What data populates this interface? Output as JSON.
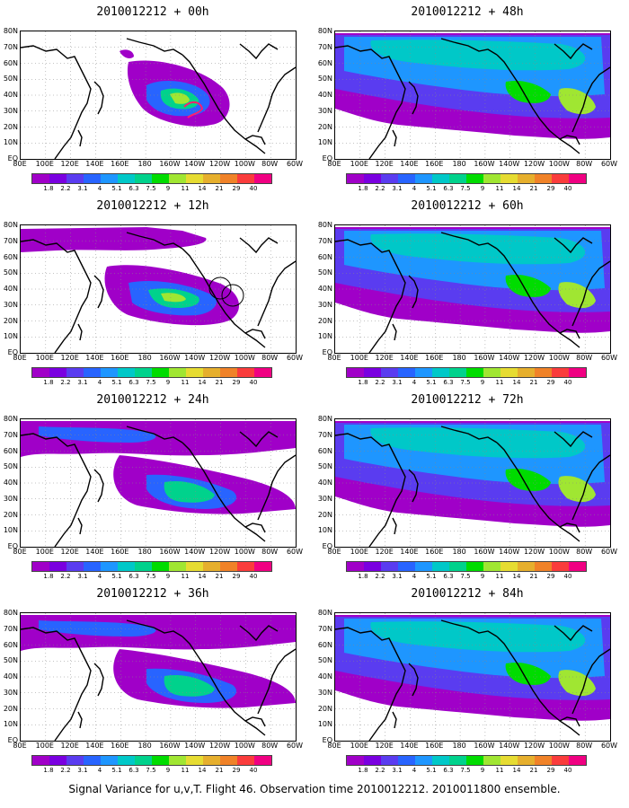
{
  "panels": [
    {
      "title": "2010012212 + 00h",
      "level": 0.9,
      "region": "pacific_east",
      "circles": false,
      "redcontour": true
    },
    {
      "title": "2010012212 + 48h",
      "level": 2.6,
      "region": "wide",
      "circles": false,
      "redcontour": false
    },
    {
      "title": "2010012212 + 12h",
      "level": 1.4,
      "region": "pacific",
      "circles": true,
      "redcontour": false
    },
    {
      "title": "2010012212 + 60h",
      "level": 2.9,
      "region": "wide",
      "circles": false,
      "redcontour": false
    },
    {
      "title": "2010012212 + 24h",
      "level": 1.8,
      "region": "pacific_wide",
      "circles": false,
      "redcontour": false
    },
    {
      "title": "2010012212 + 72h",
      "level": 3.2,
      "region": "wide",
      "circles": false,
      "redcontour": false
    },
    {
      "title": "2010012212 + 36h",
      "level": 2.2,
      "region": "pacific_wide",
      "circles": false,
      "redcontour": false
    },
    {
      "title": "2010012212 + 84h",
      "level": 3.5,
      "region": "wide",
      "circles": false,
      "redcontour": false
    }
  ],
  "lat_labels": [
    "80N",
    "70N",
    "60N",
    "50N",
    "40N",
    "30N",
    "20N",
    "10N",
    "EQ"
  ],
  "lon_labels": [
    "80E",
    "100E",
    "120E",
    "140E",
    "160E",
    "180",
    "160W",
    "140W",
    "120W",
    "100W",
    "80W",
    "60W"
  ],
  "colorbar": {
    "labels": [
      "1.8",
      "2.2",
      "3.1",
      "4",
      "5.1",
      "6.3",
      "7.5",
      "9",
      "11",
      "14",
      "21",
      "29",
      "40"
    ],
    "colors": [
      "#a000c8",
      "#7a00e0",
      "#5a3cf0",
      "#2864ff",
      "#1e96ff",
      "#00c8c8",
      "#00d28c",
      "#00dc00",
      "#a0e632",
      "#e6dc32",
      "#e6af2d",
      "#f08228",
      "#fa3c3c",
      "#f00082"
    ]
  },
  "caption": "Signal Variance for u,v,T. Flight 46. Observation time 2010012212. 2010011800 ensemble."
}
